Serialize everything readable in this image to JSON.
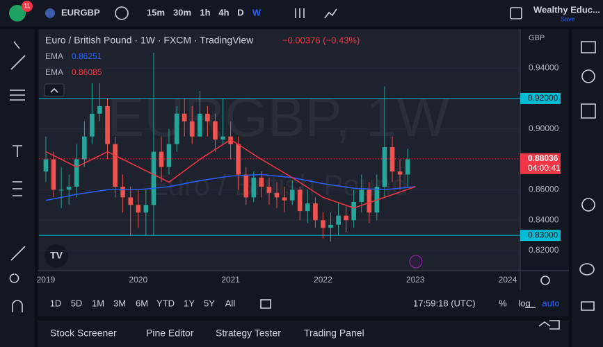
{
  "toolbar": {
    "badge": "11",
    "symbol": "EURGBP",
    "intervals": [
      "15m",
      "30m",
      "1h",
      "4h",
      "D",
      "W"
    ],
    "account": "Wealthy Educ...",
    "save": "Save"
  },
  "chart_data": {
    "type": "candlestick",
    "title": "Euro / British Pound · 1W · FXCM · TradingView",
    "change": "−0.00376 (−0.43%)",
    "watermark": "EURGBP, 1W",
    "watermark_sub": "Euro / British Pound",
    "currency": "GBP",
    "x": [
      2019,
      2019.083,
      2019.167,
      2019.25,
      2019.333,
      2019.417,
      2019.5,
      2019.583,
      2019.667,
      2019.75,
      2019.833,
      2019.917,
      2020,
      2020.083,
      2020.167,
      2020.25,
      2020.333,
      2020.417,
      2020.5,
      2020.583,
      2020.667,
      2020.75,
      2020.833,
      2020.917,
      2021,
      2021.083,
      2021.167,
      2021.25,
      2021.333,
      2021.417,
      2021.5,
      2021.583,
      2021.667,
      2021.75,
      2021.833,
      2021.917,
      2022,
      2022.083,
      2022.167,
      2022.25,
      2022.333,
      2022.417,
      2022.5,
      2022.583,
      2022.667,
      2022.75,
      2022.833,
      2022.917
    ],
    "open": [
      0.872,
      0.88,
      0.86,
      0.86,
      0.862,
      0.88,
      0.895,
      0.91,
      0.915,
      0.89,
      0.862,
      0.855,
      0.85,
      0.845,
      0.85,
      0.885,
      0.875,
      0.89,
      0.91,
      0.905,
      0.895,
      0.91,
      0.905,
      0.893,
      0.895,
      0.89,
      0.87,
      0.855,
      0.868,
      0.862,
      0.858,
      0.855,
      0.853,
      0.86,
      0.846,
      0.851,
      0.84,
      0.835,
      0.837,
      0.843,
      0.84,
      0.852,
      0.86,
      0.845,
      0.862,
      0.888,
      0.872,
      0.87
    ],
    "high": [
      0.895,
      0.885,
      0.875,
      0.87,
      0.89,
      0.905,
      0.93,
      0.93,
      0.92,
      0.895,
      0.87,
      0.862,
      0.86,
      0.86,
      0.95,
      0.895,
      0.9,
      0.915,
      0.92,
      0.915,
      0.925,
      0.915,
      0.91,
      0.92,
      0.905,
      0.895,
      0.875,
      0.872,
      0.872,
      0.868,
      0.865,
      0.862,
      0.866,
      0.862,
      0.86,
      0.855,
      0.845,
      0.845,
      0.852,
      0.85,
      0.86,
      0.87,
      0.865,
      0.87,
      0.928,
      0.895,
      0.88,
      0.887
    ],
    "low": [
      0.865,
      0.855,
      0.848,
      0.85,
      0.855,
      0.875,
      0.89,
      0.905,
      0.88,
      0.855,
      0.845,
      0.83,
      0.835,
      0.83,
      0.83,
      0.865,
      0.87,
      0.885,
      0.895,
      0.89,
      0.895,
      0.895,
      0.885,
      0.89,
      0.88,
      0.86,
      0.85,
      0.852,
      0.855,
      0.85,
      0.848,
      0.845,
      0.85,
      0.84,
      0.838,
      0.835,
      0.828,
      0.826,
      0.83,
      0.832,
      0.835,
      0.845,
      0.838,
      0.84,
      0.855,
      0.865,
      0.86,
      0.862
    ],
    "close": [
      0.88,
      0.86,
      0.86,
      0.862,
      0.88,
      0.895,
      0.91,
      0.915,
      0.89,
      0.862,
      0.855,
      0.85,
      0.845,
      0.85,
      0.885,
      0.875,
      0.89,
      0.91,
      0.905,
      0.895,
      0.91,
      0.905,
      0.893,
      0.895,
      0.89,
      0.87,
      0.855,
      0.868,
      0.862,
      0.858,
      0.855,
      0.853,
      0.86,
      0.846,
      0.851,
      0.84,
      0.835,
      0.837,
      0.843,
      0.84,
      0.852,
      0.86,
      0.845,
      0.862,
      0.888,
      0.872,
      0.87,
      0.88
    ],
    "up_color": "#26a69a",
    "down_color": "#ef5350",
    "series": [
      {
        "name": "EMA",
        "color": "#2962ff",
        "last": 0.86251,
        "x": [
          2019,
          2019.333,
          2019.667,
          2020,
          2020.333,
          2020.667,
          2021,
          2021.333,
          2021.667,
          2022,
          2022.333,
          2022.667,
          2023
        ],
        "values": [
          0.853,
          0.857,
          0.86,
          0.86,
          0.862,
          0.866,
          0.869,
          0.87,
          0.868,
          0.864,
          0.861,
          0.86,
          0.862
        ]
      },
      {
        "name": "EMA",
        "color": "#f23645",
        "last": 0.86085,
        "x": [
          2019,
          2019.333,
          2019.667,
          2020,
          2020.333,
          2020.667,
          2021,
          2021.333,
          2021.667,
          2022,
          2022.333,
          2022.667,
          2023
        ],
        "values": [
          0.885,
          0.875,
          0.885,
          0.875,
          0.865,
          0.88,
          0.893,
          0.88,
          0.868,
          0.855,
          0.848,
          0.855,
          0.862
        ]
      }
    ],
    "levels": [
      {
        "value": 0.92,
        "label": "0.92000"
      },
      {
        "value": 0.83,
        "label": "0.83000"
      }
    ],
    "last_price": 0.88036,
    "countdown": "04:00:41",
    "xlim": [
      2018.925,
      2024.135
    ],
    "ylim": [
      0.8068,
      0.9656
    ],
    "xticks": [
      2019,
      2020,
      2021,
      2022,
      2023,
      2024
    ],
    "yticks": [
      {
        "value": 0.82,
        "label": "0.82000"
      },
      {
        "value": 0.84,
        "label": "0.84000"
      },
      {
        "value": 0.86,
        "label": "0.86000"
      },
      {
        "value": 0.88,
        "label": "0.88000"
      },
      {
        "value": 0.9,
        "label": "0.90000"
      },
      {
        "value": 0.94,
        "label": "0.94000"
      }
    ]
  },
  "range_bar": {
    "ranges": [
      "1D",
      "5D",
      "1M",
      "3M",
      "6M",
      "YTD",
      "1Y",
      "5Y",
      "All"
    ],
    "clock": "17:59:18 (UTC)",
    "percent": "%",
    "log": "log",
    "auto": "auto"
  },
  "panel": {
    "tabs": [
      "Stock Screener",
      "Pine Editor",
      "Strategy Tester",
      "Trading Panel"
    ]
  }
}
